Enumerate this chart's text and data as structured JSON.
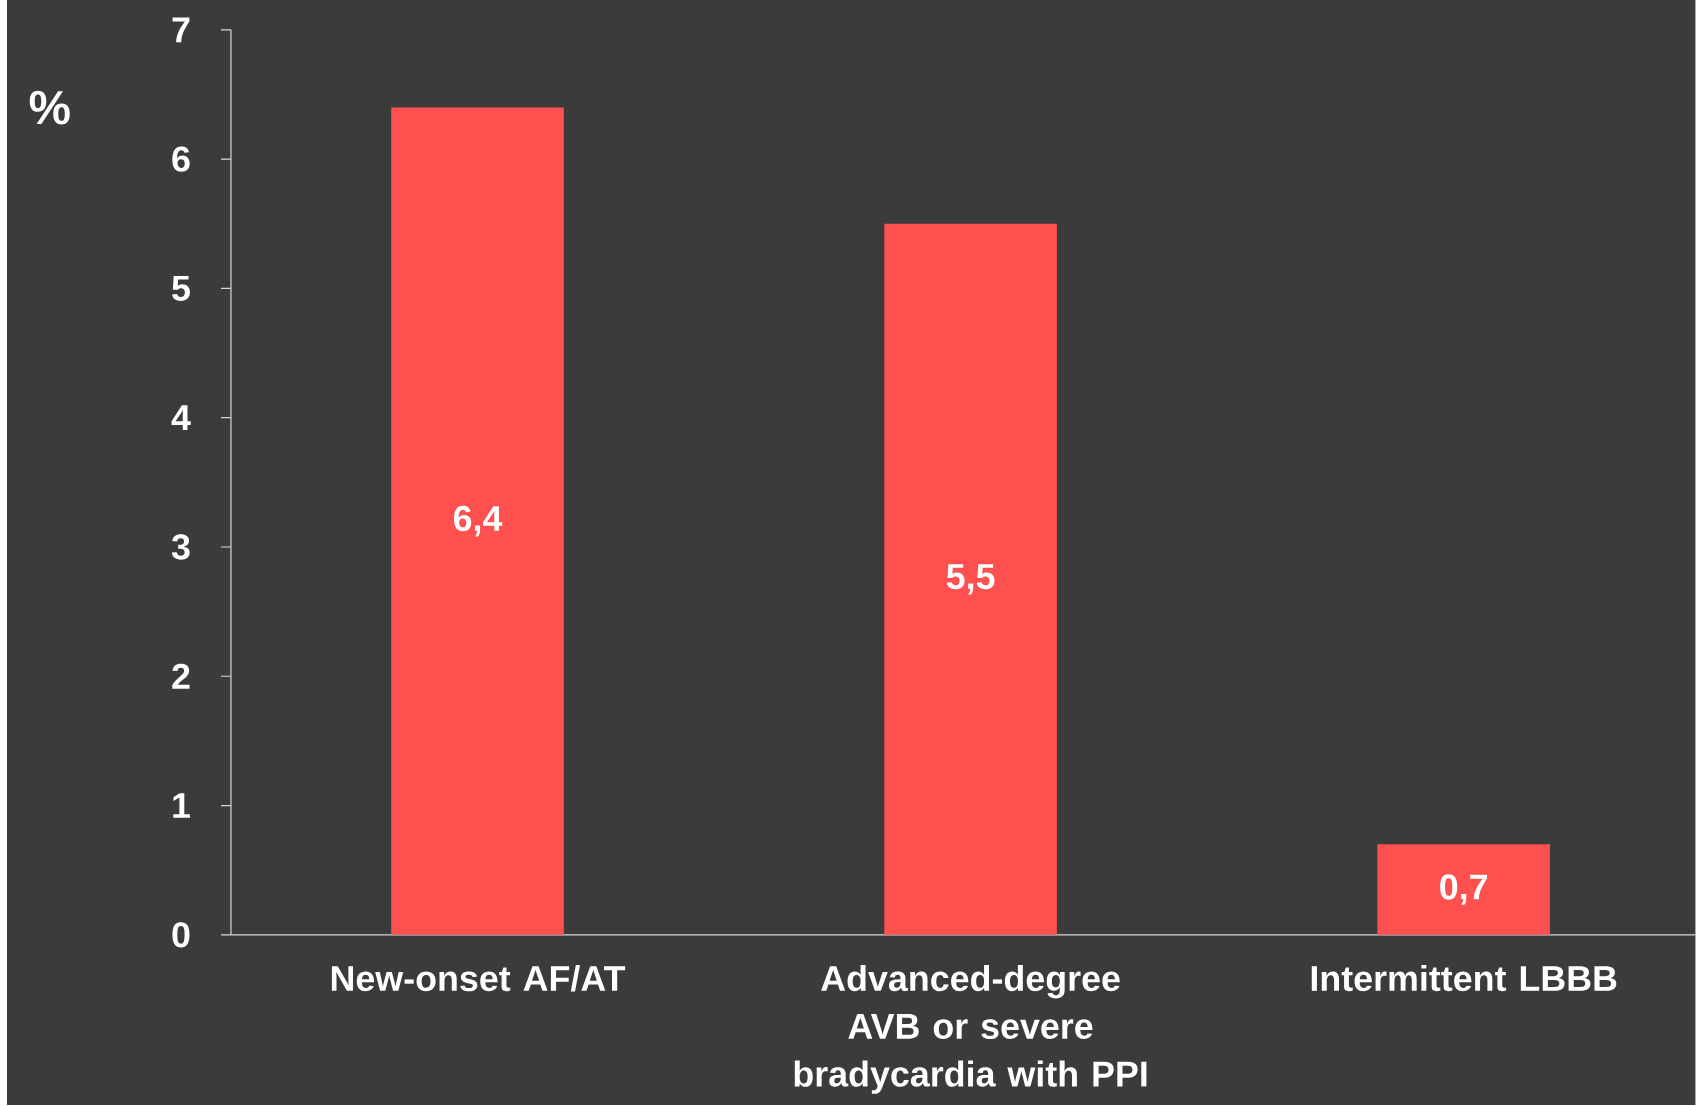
{
  "chart_data": {
    "type": "bar",
    "ylabel": "%",
    "categories": [
      "New-onset AF/AT",
      "Advanced-degree AVB or severe bradycardia with PPI",
      "Intermittent LBBB"
    ],
    "values": [
      6.4,
      5.5,
      0.7
    ],
    "value_labels": [
      "6,4",
      "5,5",
      "0,7"
    ],
    "color": "#ff5050",
    "ylim": [
      0,
      7
    ],
    "yticks": [
      0,
      1,
      2,
      3,
      4,
      5,
      6,
      7
    ]
  }
}
